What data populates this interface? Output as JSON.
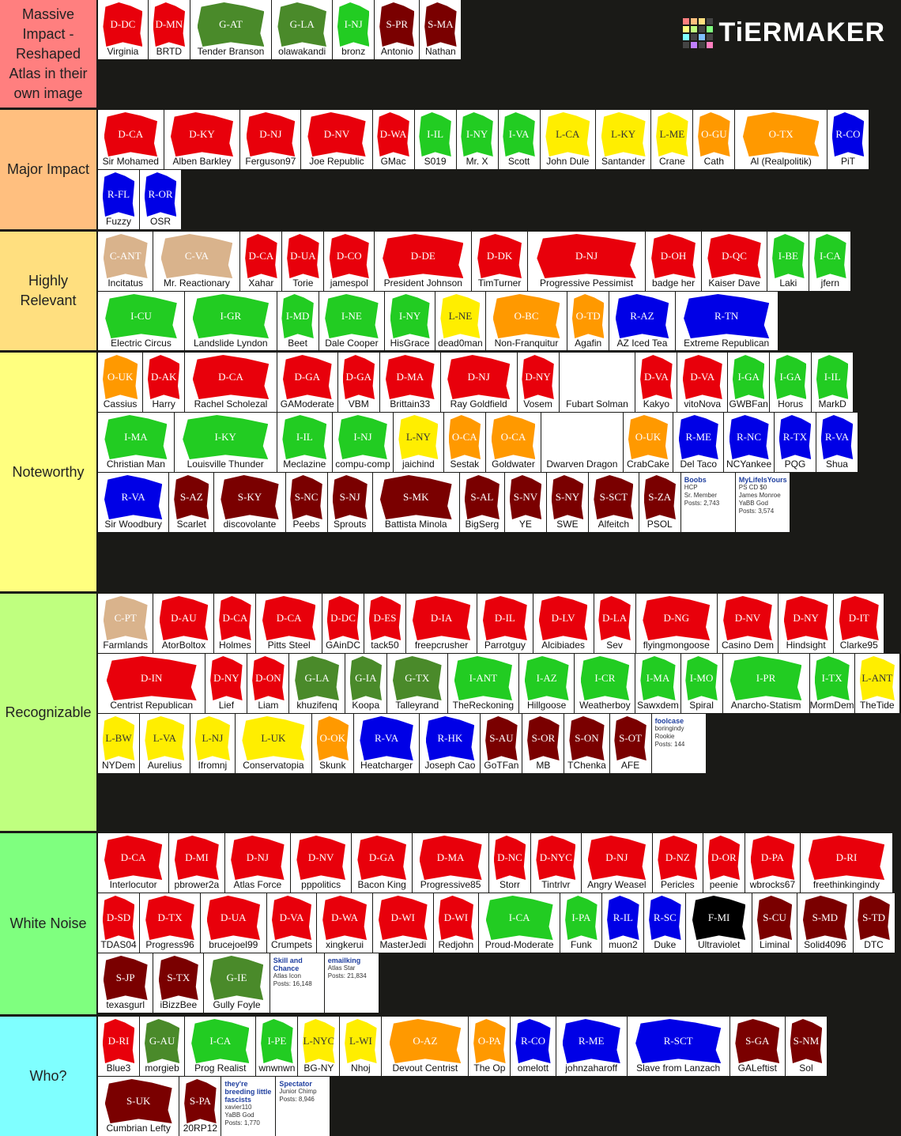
{
  "logo": "TiERMAKER",
  "colors": {
    "D": "#e8000b",
    "I": "#22cc22",
    "G": "#4a8a2a",
    "L": "#ffee00",
    "O": "#ff9900",
    "R": "#0000e6",
    "S": "#7a0000",
    "C": "#d9b38c",
    "F": "#000000"
  },
  "tiers": [
    {
      "label": "Massive Impact - Reshaped Atlas in their own image",
      "color": "#ff7f7f",
      "items": [
        {
          "tag": "D-DC",
          "name": "Virginia"
        },
        {
          "tag": "D-MN",
          "name": "BRTD"
        },
        {
          "tag": "G-AT",
          "name": "Tender Branson"
        },
        {
          "tag": "G-LA",
          "name": "olawakandi"
        },
        {
          "tag": "I-NJ",
          "name": "bronz"
        },
        {
          "tag": "S-PR",
          "name": "Antonio"
        },
        {
          "tag": "S-MA",
          "name": "Nathan"
        }
      ]
    },
    {
      "label": "Major Impact",
      "color": "#ffbf7f",
      "items": [
        {
          "tag": "D-CA",
          "name": "Sir Mohamed"
        },
        {
          "tag": "D-KY",
          "name": "Alben Barkley"
        },
        {
          "tag": "D-NJ",
          "name": "Ferguson97"
        },
        {
          "tag": "D-NV",
          "name": "Joe Republic"
        },
        {
          "tag": "D-WA",
          "name": "GMac"
        },
        {
          "tag": "I-IL",
          "name": "S019"
        },
        {
          "tag": "I-NY",
          "name": "Mr. X"
        },
        {
          "tag": "I-VA",
          "name": "Scott"
        },
        {
          "tag": "L-CA",
          "name": "John Dule"
        },
        {
          "tag": "L-KY",
          "name": "Santander"
        },
        {
          "tag": "L-ME",
          "name": "Crane"
        },
        {
          "tag": "O-GU",
          "name": "Cath"
        },
        {
          "tag": "O-TX",
          "name": "Al (Realpolitik)"
        },
        {
          "tag": "R-CO",
          "name": "PiT"
        },
        {
          "tag": "R-FL",
          "name": "Fuzzy"
        },
        {
          "tag": "R-OR",
          "name": "OSR"
        }
      ]
    },
    {
      "label": "Highly Relevant",
      "color": "#ffdf7f",
      "items": [
        {
          "tag": "C-ANT",
          "name": "Incitatus"
        },
        {
          "tag": "C-VA",
          "name": "Mr. Reactionary"
        },
        {
          "tag": "D-CA",
          "name": "Xahar"
        },
        {
          "tag": "D-UA",
          "name": "Torie"
        },
        {
          "tag": "D-CO",
          "name": "jamespol"
        },
        {
          "tag": "D-DE",
          "name": "President Johnson"
        },
        {
          "tag": "D-DK",
          "name": "TimTurner"
        },
        {
          "tag": "D-NJ",
          "name": "Progressive Pessimist"
        },
        {
          "tag": "D-OH",
          "name": "badge her"
        },
        {
          "tag": "D-QC",
          "name": "Kaiser Dave"
        },
        {
          "tag": "I-BE",
          "name": "Laki"
        },
        {
          "tag": "I-CA",
          "name": "jfern"
        },
        {
          "tag": "I-CU",
          "name": "Electric Circus"
        },
        {
          "tag": "I-GR",
          "name": "Landslide Lyndon"
        },
        {
          "tag": "I-MD",
          "name": "Beet"
        },
        {
          "tag": "I-NE",
          "name": "Dale Cooper"
        },
        {
          "tag": "I-NY",
          "name": "HisGrace"
        },
        {
          "tag": "L-NE",
          "name": "dead0man"
        },
        {
          "tag": "O-BC",
          "name": "Non-Franquitur"
        },
        {
          "tag": "O-TD",
          "name": "Agafin"
        },
        {
          "tag": "R-AZ",
          "name": "AZ Iced Tea"
        },
        {
          "tag": "R-TN",
          "name": "Extreme Republican"
        }
      ]
    },
    {
      "label": "Noteworthy",
      "color": "#ffff7f",
      "items": [
        {
          "tag": "O-UK",
          "name": "Cassius"
        },
        {
          "tag": "D-AK",
          "name": "Harry"
        },
        {
          "tag": "D-CA",
          "name": "Rachel Scholezal"
        },
        {
          "tag": "D-GA",
          "name": "GAModerate"
        },
        {
          "tag": "D-GA",
          "name": "VBM"
        },
        {
          "tag": "D-MA",
          "name": "Brittain33"
        },
        {
          "tag": "D-NJ",
          "name": "Ray Goldfield"
        },
        {
          "tag": "D-NY",
          "name": "Vosem"
        },
        {
          "name": "Fubart Solman"
        },
        {
          "tag": "D-VA",
          "name": "Kakyo"
        },
        {
          "tag": "D-VA",
          "name": "vitoNova"
        },
        {
          "tag": "I-GA",
          "name": "GWBFan"
        },
        {
          "tag": "I-GA",
          "name": "Horus"
        },
        {
          "tag": "I-IL",
          "name": "MarkD"
        },
        {
          "tag": "I-MA",
          "name": "Christian Man"
        },
        {
          "tag": "I-KY",
          "name": "Louisville Thunder"
        },
        {
          "tag": "I-IL",
          "name": "Meclazine"
        },
        {
          "tag": "I-NJ",
          "name": "compu-comp"
        },
        {
          "tag": "L-NY",
          "name": "jaichind"
        },
        {
          "tag": "O-CA",
          "name": "Sestak"
        },
        {
          "tag": "O-CA",
          "name": "Goldwater"
        },
        {
          "name": "Dwarven Dragon"
        },
        {
          "tag": "O-UK",
          "name": "CrabCake"
        },
        {
          "tag": "R-ME",
          "name": "Del Taco"
        },
        {
          "tag": "R-NC",
          "name": "NCYankee"
        },
        {
          "tag": "R-TX",
          "name": "PQG"
        },
        {
          "tag": "R-VA",
          "name": "Shua"
        },
        {
          "tag": "R-VA",
          "name": "Sir Woodbury"
        },
        {
          "tag": "S-AZ",
          "name": "Scarlet"
        },
        {
          "tag": "S-KY",
          "name": "discovolante"
        },
        {
          "tag": "S-NC",
          "name": "Peebs"
        },
        {
          "tag": "S-NJ",
          "name": "Sprouts"
        },
        {
          "tag": "S-MK",
          "name": "Battista Minola"
        },
        {
          "tag": "S-AL",
          "name": "BigSerg"
        },
        {
          "tag": "S-NV",
          "name": "YE"
        },
        {
          "tag": "S-NY",
          "name": "SWE"
        },
        {
          "tag": "S-SCT",
          "name": "Alfeitch"
        },
        {
          "tag": "S-ZA",
          "name": "PSOL"
        },
        {
          "lines": [
            "Boobs",
            "HCP",
            "Sr. Member",
            "Posts: 2,743"
          ]
        },
        {
          "lines": [
            "MyLifeIsYours",
            "PS CD $0",
            "James Monroe",
            "YaBB God",
            "Posts: 3,574"
          ]
        }
      ]
    },
    {
      "label": "Recognizable",
      "color": "#bfff7f",
      "items": [
        {
          "tag": "C-PT",
          "name": "Farmlands"
        },
        {
          "tag": "D-AU",
          "name": "AtorBoltox"
        },
        {
          "tag": "D-CA",
          "name": "Holmes"
        },
        {
          "tag": "D-CA",
          "name": "Pitts Steel"
        },
        {
          "tag": "D-DC",
          "name": "GAinDC"
        },
        {
          "tag": "D-ES",
          "name": "tack50"
        },
        {
          "tag": "D-IA",
          "name": "freepcrusher"
        },
        {
          "tag": "D-IL",
          "name": "Parrotguy"
        },
        {
          "tag": "D-LV",
          "name": "Alcibiades"
        },
        {
          "tag": "D-LA",
          "name": "Sev"
        },
        {
          "tag": "D-NG",
          "name": "flyingmongoose"
        },
        {
          "tag": "D-NV",
          "name": "Casino Dem"
        },
        {
          "tag": "D-NY",
          "name": "Hindsight"
        },
        {
          "tag": "D-IT",
          "name": "Clarke95"
        },
        {
          "tag": "D-IN",
          "name": "Centrist Republican"
        },
        {
          "tag": "D-NY",
          "name": "Lief"
        },
        {
          "tag": "D-ON",
          "name": "Liam"
        },
        {
          "tag": "G-LA",
          "name": "khuzifenq"
        },
        {
          "tag": "G-IA",
          "name": "Koopa"
        },
        {
          "tag": "G-TX",
          "name": "Talleyrand"
        },
        {
          "tag": "I-ANT",
          "name": "TheReckoning"
        },
        {
          "tag": "I-AZ",
          "name": "Hillgoose"
        },
        {
          "tag": "I-CR",
          "name": "Weatherboy"
        },
        {
          "tag": "I-MA",
          "name": "Sawxdem"
        },
        {
          "tag": "I-MO",
          "name": "Spiral"
        },
        {
          "tag": "I-PR",
          "name": "Anarcho-Statism"
        },
        {
          "tag": "I-TX",
          "name": "MormDem"
        },
        {
          "tag": "L-ANT",
          "name": "TheTide"
        },
        {
          "tag": "L-BW",
          "name": "NYDem"
        },
        {
          "tag": "L-VA",
          "name": "Aurelius"
        },
        {
          "tag": "L-NJ",
          "name": "Ifromnj"
        },
        {
          "tag": "L-UK",
          "name": "Conservatopia"
        },
        {
          "tag": "O-OK",
          "name": "Skunk"
        },
        {
          "tag": "R-VA",
          "name": "Heatcharger"
        },
        {
          "tag": "R-HK",
          "name": "Joseph Cao"
        },
        {
          "tag": "S-AU",
          "name": "GoTFan"
        },
        {
          "tag": "S-OR",
          "name": "MB"
        },
        {
          "tag": "S-ON",
          "name": "TChenka"
        },
        {
          "tag": "S-OT",
          "name": "AFE"
        },
        {
          "lines": [
            "foolcase",
            "boringindy",
            "Rookie",
            "Posts: 144"
          ]
        }
      ]
    },
    {
      "label": "White Noise",
      "color": "#7fff7f",
      "items": [
        {
          "tag": "D-CA",
          "name": "Interlocutor"
        },
        {
          "tag": "D-MI",
          "name": "pbrower2a"
        },
        {
          "tag": "D-NJ",
          "name": "Atlas Force"
        },
        {
          "tag": "D-NV",
          "name": "pppolitics"
        },
        {
          "tag": "D-GA",
          "name": "Bacon King"
        },
        {
          "tag": "D-MA",
          "name": "Progressive85"
        },
        {
          "tag": "D-NC",
          "name": "Storr"
        },
        {
          "tag": "D-NYC",
          "name": "Tintrlvr"
        },
        {
          "tag": "D-NJ",
          "name": "Angry Weasel"
        },
        {
          "tag": "D-NZ",
          "name": "Pericles"
        },
        {
          "tag": "D-OR",
          "name": "peenie"
        },
        {
          "tag": "D-PA",
          "name": "wbrocks67"
        },
        {
          "tag": "D-RI",
          "name": "freethinkingindy"
        },
        {
          "tag": "D-SD",
          "name": "TDAS04"
        },
        {
          "tag": "D-TX",
          "name": "Progress96"
        },
        {
          "tag": "D-UA",
          "name": "brucejoel99"
        },
        {
          "tag": "D-VA",
          "name": "Crumpets"
        },
        {
          "tag": "D-WA",
          "name": "xingkerui"
        },
        {
          "tag": "D-WI",
          "name": "MasterJedi"
        },
        {
          "tag": "D-WI",
          "name": "Redjohn"
        },
        {
          "tag": "I-CA",
          "name": "Proud-Moderate"
        },
        {
          "tag": "I-PA",
          "name": "Funk"
        },
        {
          "tag": "R-IL",
          "name": "muon2"
        },
        {
          "tag": "R-SC",
          "name": "Duke"
        },
        {
          "tag": "F-MI",
          "name": "Ultraviolet"
        },
        {
          "tag": "S-CU",
          "name": "Liminal"
        },
        {
          "tag": "S-MD",
          "name": "Solid4096"
        },
        {
          "tag": "S-TD",
          "name": "DTC"
        },
        {
          "tag": "S-JP",
          "name": "texasgurl"
        },
        {
          "tag": "S-TX",
          "name": "iBizzBee"
        },
        {
          "tag": "G-IE",
          "name": "Gully Foyle"
        },
        {
          "lines": [
            "Skill and Chance",
            "Atlas Icon",
            "Posts: 16,148"
          ]
        },
        {
          "lines": [
            "emailking",
            "Atlas Star",
            "Posts: 21,834"
          ]
        }
      ]
    },
    {
      "label": "Who?",
      "color": "#7fffff",
      "items": [
        {
          "tag": "D-RI",
          "name": "Blue3"
        },
        {
          "tag": "G-AU",
          "name": "morgieb"
        },
        {
          "tag": "I-CA",
          "name": "Prog Realist"
        },
        {
          "tag": "I-PE",
          "name": "wnwnwn"
        },
        {
          "tag": "L-NYC",
          "name": "BG-NY"
        },
        {
          "tag": "L-WI",
          "name": "Nhoj"
        },
        {
          "tag": "O-AZ",
          "name": "Devout Centrist"
        },
        {
          "tag": "O-PA",
          "name": "The Op"
        },
        {
          "tag": "R-CO",
          "name": "omelott"
        },
        {
          "tag": "R-ME",
          "name": "johnzaharoff"
        },
        {
          "tag": "R-SCT",
          "name": "Slave from Lanzach"
        },
        {
          "tag": "S-GA",
          "name": "GALeftist"
        },
        {
          "tag": "S-NM",
          "name": "Sol"
        },
        {
          "tag": "S-UK",
          "name": "Cumbrian Lefty"
        },
        {
          "tag": "S-PA",
          "name": "20RP12"
        },
        {
          "lines": [
            "they're breeding little fascists",
            "xavier110",
            "YaBB God",
            "Posts: 1,770"
          ]
        },
        {
          "lines": [
            "Spectator",
            "Junior Chimp",
            "Posts: 8,946"
          ]
        }
      ]
    }
  ]
}
